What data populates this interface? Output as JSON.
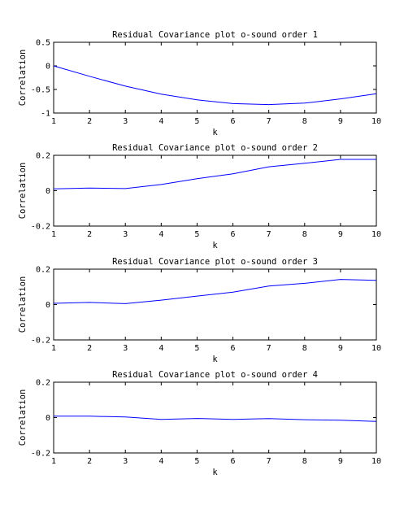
{
  "chart_data": [
    {
      "type": "line",
      "title": "Residual Covariance plot o-sound order 1",
      "xlabel": "k",
      "ylabel": "Correlation",
      "xlim": [
        1,
        10
      ],
      "ylim": [
        -1,
        0.5
      ],
      "xticks": [
        "1",
        "2",
        "3",
        "4",
        "5",
        "6",
        "7",
        "8",
        "9",
        "10"
      ],
      "yticks": [
        "0.5",
        "0",
        "-0.5",
        "-1"
      ],
      "ytick_values": [
        0.5,
        0,
        -0.5,
        -1
      ],
      "grid": false,
      "series_color": "#0000ff",
      "series": [
        {
          "x": [
            1,
            2,
            3,
            4,
            5,
            6,
            7,
            8,
            9,
            10
          ],
          "values": [
            0.0,
            -0.22,
            -0.43,
            -0.6,
            -0.72,
            -0.8,
            -0.82,
            -0.79,
            -0.7,
            -0.59
          ]
        }
      ]
    },
    {
      "type": "line",
      "title": "Residual Covariance plot o-sound order 2",
      "xlabel": "k",
      "ylabel": "Correlation",
      "xlim": [
        1,
        10
      ],
      "ylim": [
        -0.2,
        0.2
      ],
      "xticks": [
        "1",
        "2",
        "3",
        "4",
        "5",
        "6",
        "7",
        "8",
        "9",
        "10"
      ],
      "yticks": [
        "0.2",
        "0",
        "-0.2"
      ],
      "ytick_values": [
        0.2,
        0,
        -0.2
      ],
      "grid": false,
      "series_color": "#0000ff",
      "series": [
        {
          "x": [
            1,
            2,
            3,
            4,
            5,
            6,
            7,
            8,
            9,
            10
          ],
          "values": [
            0.01,
            0.015,
            0.012,
            0.035,
            0.068,
            0.095,
            0.135,
            0.155,
            0.177,
            0.177
          ]
        }
      ]
    },
    {
      "type": "line",
      "title": "Residual Covariance plot o-sound order 3",
      "xlabel": "k",
      "ylabel": "Correlation",
      "xlim": [
        1,
        10
      ],
      "ylim": [
        -0.2,
        0.2
      ],
      "xticks": [
        "1",
        "2",
        "3",
        "4",
        "5",
        "6",
        "7",
        "8",
        "9",
        "10"
      ],
      "yticks": [
        "0.2",
        "0",
        "-0.2"
      ],
      "ytick_values": [
        0.2,
        0,
        -0.2
      ],
      "grid": false,
      "series_color": "#0000ff",
      "series": [
        {
          "x": [
            1,
            2,
            3,
            4,
            5,
            6,
            7,
            8,
            9,
            10
          ],
          "values": [
            0.007,
            0.012,
            0.005,
            0.025,
            0.048,
            0.07,
            0.105,
            0.12,
            0.142,
            0.137
          ]
        }
      ]
    },
    {
      "type": "line",
      "title": "Residual Covariance plot o-sound order 4",
      "xlabel": "k",
      "ylabel": "Correlation",
      "xlim": [
        1,
        10
      ],
      "ylim": [
        -0.2,
        0.2
      ],
      "xticks": [
        "1",
        "2",
        "3",
        "4",
        "5",
        "6",
        "7",
        "8",
        "9",
        "10"
      ],
      "yticks": [
        "0.2",
        "0",
        "-0.2"
      ],
      "ytick_values": [
        0.2,
        0,
        -0.2
      ],
      "grid": false,
      "series_color": "#0000ff",
      "series": [
        {
          "x": [
            1,
            2,
            3,
            4,
            5,
            6,
            7,
            8,
            9,
            10
          ],
          "values": [
            0.008,
            0.008,
            0.003,
            -0.01,
            -0.005,
            -0.01,
            -0.006,
            -0.012,
            -0.015,
            -0.022
          ]
        }
      ]
    }
  ]
}
